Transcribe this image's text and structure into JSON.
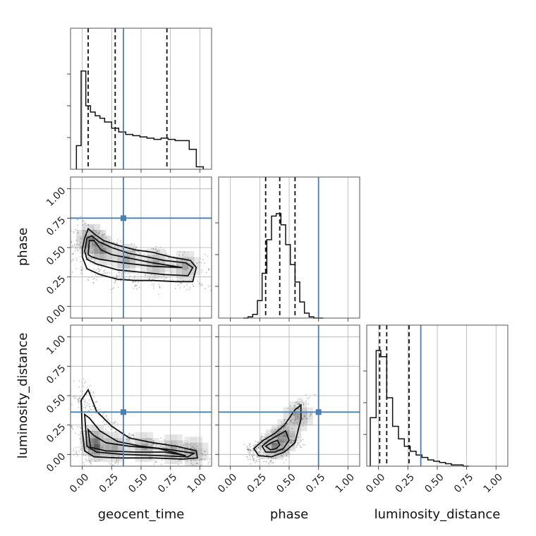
{
  "chart_data": {
    "type": "corner",
    "parameters": [
      "geocent_time",
      "phase",
      "luminosity_distance"
    ],
    "axis_range": [
      -0.1,
      1.1
    ],
    "ticks": [
      0,
      0.25,
      0.5,
      0.75,
      1.0
    ],
    "tick_labels": [
      "0.00",
      "0.25",
      "0.50",
      "0.75",
      "1.00"
    ],
    "grid": true,
    "truths": {
      "geocent_time": 0.35,
      "phase": 0.75,
      "luminosity_distance": 0.36
    },
    "truth_color": "#4a7fb4",
    "hist_color": "#111111",
    "histograms": {
      "geocent_time": {
        "bin_edges": [
          -0.05,
          -0.01,
          0.03,
          0.07,
          0.11,
          0.15,
          0.19,
          0.25,
          0.31,
          0.37,
          0.43,
          0.49,
          0.55,
          0.61,
          0.67,
          0.73,
          0.79,
          0.85,
          0.91,
          0.97,
          1.03
        ],
        "counts": [
          0.19,
          0.79,
          0.51,
          0.46,
          0.43,
          0.41,
          0.38,
          0.33,
          0.3,
          0.28,
          0.27,
          0.26,
          0.25,
          0.24,
          0.25,
          0.24,
          0.23,
          0.23,
          0.16,
          0.02
        ],
        "quantiles": [
          0.05,
          0.28,
          0.72
        ]
      },
      "phase": {
        "bin_edges": [
          0.11,
          0.15,
          0.19,
          0.23,
          0.27,
          0.31,
          0.35,
          0.39,
          0.43,
          0.47,
          0.51,
          0.55,
          0.59,
          0.63,
          0.67,
          0.71,
          0.75,
          0.79
        ],
        "counts": [
          0.0,
          0.01,
          0.03,
          0.14,
          0.36,
          0.63,
          0.82,
          0.84,
          0.75,
          0.59,
          0.43,
          0.29,
          0.13,
          0.04,
          0.01,
          0.0,
          0.0
        ],
        "quantiles": [
          0.3,
          0.42,
          0.55
        ]
      },
      "luminosity_distance": {
        "bin_edges": [
          -0.07,
          -0.02,
          0.02,
          0.07,
          0.12,
          0.17,
          0.22,
          0.27,
          0.32,
          0.37,
          0.42,
          0.47,
          0.52,
          0.57,
          0.62,
          0.67,
          0.72,
          0.77
        ],
        "counts": [
          0.39,
          0.93,
          0.88,
          0.55,
          0.32,
          0.22,
          0.16,
          0.12,
          0.09,
          0.07,
          0.05,
          0.04,
          0.03,
          0.02,
          0.01,
          0.01,
          0.0
        ],
        "quantiles": [
          0.01,
          0.07,
          0.26
        ]
      }
    },
    "contours": {
      "phase_vs_geocent_time": [
        [
          [
            0.0,
            0.49
          ],
          [
            0.02,
            0.58
          ],
          [
            0.05,
            0.66
          ],
          [
            0.11,
            0.61
          ],
          [
            0.18,
            0.56
          ],
          [
            0.3,
            0.52
          ],
          [
            0.45,
            0.48
          ],
          [
            0.6,
            0.46
          ],
          [
            0.75,
            0.42
          ],
          [
            0.92,
            0.39
          ],
          [
            0.97,
            0.33
          ],
          [
            0.94,
            0.21
          ],
          [
            0.8,
            0.21
          ],
          [
            0.6,
            0.22
          ],
          [
            0.45,
            0.22
          ],
          [
            0.3,
            0.23
          ],
          [
            0.15,
            0.27
          ],
          [
            0.04,
            0.32
          ],
          [
            0.0,
            0.42
          ],
          [
            0.0,
            0.49
          ]
        ],
        [
          [
            0.02,
            0.47
          ],
          [
            0.04,
            0.58
          ],
          [
            0.08,
            0.6
          ],
          [
            0.14,
            0.55
          ],
          [
            0.25,
            0.5
          ],
          [
            0.4,
            0.45
          ],
          [
            0.55,
            0.42
          ],
          [
            0.7,
            0.39
          ],
          [
            0.88,
            0.37
          ],
          [
            0.94,
            0.33
          ],
          [
            0.9,
            0.26
          ],
          [
            0.7,
            0.27
          ],
          [
            0.5,
            0.29
          ],
          [
            0.3,
            0.31
          ],
          [
            0.12,
            0.36
          ],
          [
            0.04,
            0.4
          ],
          [
            0.02,
            0.47
          ]
        ],
        [
          [
            0.05,
            0.44
          ],
          [
            0.06,
            0.56
          ],
          [
            0.1,
            0.56
          ],
          [
            0.16,
            0.48
          ],
          [
            0.25,
            0.44
          ],
          [
            0.4,
            0.41
          ],
          [
            0.6,
            0.37
          ],
          [
            0.85,
            0.33
          ],
          [
            0.6,
            0.34
          ],
          [
            0.35,
            0.37
          ],
          [
            0.15,
            0.4
          ],
          [
            0.08,
            0.42
          ],
          [
            0.05,
            0.44
          ]
        ]
      ],
      "luminosity_distance_vs_geocent_time": [
        [
          [
            -0.01,
            0.46
          ],
          [
            0.0,
            0.2
          ],
          [
            0.02,
            0.03
          ],
          [
            0.1,
            -0.02
          ],
          [
            0.3,
            -0.03
          ],
          [
            0.6,
            -0.03
          ],
          [
            0.85,
            -0.04
          ],
          [
            0.98,
            -0.03
          ],
          [
            0.97,
            0.03
          ],
          [
            0.8,
            0.07
          ],
          [
            0.6,
            0.1
          ],
          [
            0.4,
            0.14
          ],
          [
            0.25,
            0.24
          ],
          [
            0.12,
            0.37
          ],
          [
            0.05,
            0.55
          ],
          [
            -0.01,
            0.46
          ]
        ],
        [
          [
            0.02,
            0.34
          ],
          [
            0.04,
            0.07
          ],
          [
            0.12,
            0.02
          ],
          [
            0.35,
            0.0
          ],
          [
            0.65,
            -0.01
          ],
          [
            0.9,
            -0.02
          ],
          [
            0.95,
            0.01
          ],
          [
            0.75,
            0.04
          ],
          [
            0.5,
            0.07
          ],
          [
            0.3,
            0.11
          ],
          [
            0.15,
            0.2
          ],
          [
            0.06,
            0.31
          ],
          [
            0.02,
            0.34
          ]
        ],
        [
          [
            0.05,
            0.21
          ],
          [
            0.07,
            0.06
          ],
          [
            0.2,
            0.03
          ],
          [
            0.45,
            0.02
          ],
          [
            0.7,
            0.02
          ],
          [
            0.88,
            -0.01
          ],
          [
            0.65,
            0.05
          ],
          [
            0.4,
            0.07
          ],
          [
            0.2,
            0.1
          ],
          [
            0.1,
            0.16
          ],
          [
            0.05,
            0.21
          ]
        ]
      ],
      "luminosity_distance_vs_phase": [
        [
          [
            0.2,
            0.05
          ],
          [
            0.24,
            -0.01
          ],
          [
            0.35,
            -0.02
          ],
          [
            0.46,
            0.02
          ],
          [
            0.55,
            0.1
          ],
          [
            0.6,
            0.3
          ],
          [
            0.6,
            0.42
          ],
          [
            0.55,
            0.38
          ],
          [
            0.46,
            0.25
          ],
          [
            0.38,
            0.18
          ],
          [
            0.28,
            0.12
          ],
          [
            0.2,
            0.05
          ]
        ],
        [
          [
            0.27,
            0.07
          ],
          [
            0.3,
            0.02
          ],
          [
            0.38,
            0.02
          ],
          [
            0.45,
            0.05
          ],
          [
            0.5,
            0.12
          ],
          [
            0.47,
            0.2
          ],
          [
            0.4,
            0.16
          ],
          [
            0.33,
            0.12
          ],
          [
            0.27,
            0.07
          ]
        ],
        [
          [
            0.3,
            0.07
          ],
          [
            0.34,
            0.04
          ],
          [
            0.39,
            0.05
          ],
          [
            0.42,
            0.08
          ],
          [
            0.4,
            0.12
          ],
          [
            0.35,
            0.1
          ],
          [
            0.3,
            0.07
          ]
        ]
      ]
    },
    "density_peaks": {
      "phase_vs_geocent_time": [
        [
          0.05,
          0.55
        ],
        [
          0.08,
          0.5
        ],
        [
          0.15,
          0.45
        ],
        [
          0.35,
          0.38
        ],
        [
          0.6,
          0.34
        ],
        [
          0.85,
          0.32
        ]
      ],
      "luminosity_distance_vs_geocent_time": [
        [
          0.08,
          0.1
        ],
        [
          0.1,
          0.04
        ],
        [
          0.25,
          0.04
        ],
        [
          0.5,
          0.04
        ],
        [
          0.75,
          0.02
        ],
        [
          0.92,
          0.0
        ]
      ],
      "luminosity_distance_vs_phase": [
        [
          0.35,
          0.06
        ],
        [
          0.4,
          0.08
        ],
        [
          0.45,
          0.15
        ],
        [
          0.55,
          0.3
        ]
      ]
    }
  }
}
